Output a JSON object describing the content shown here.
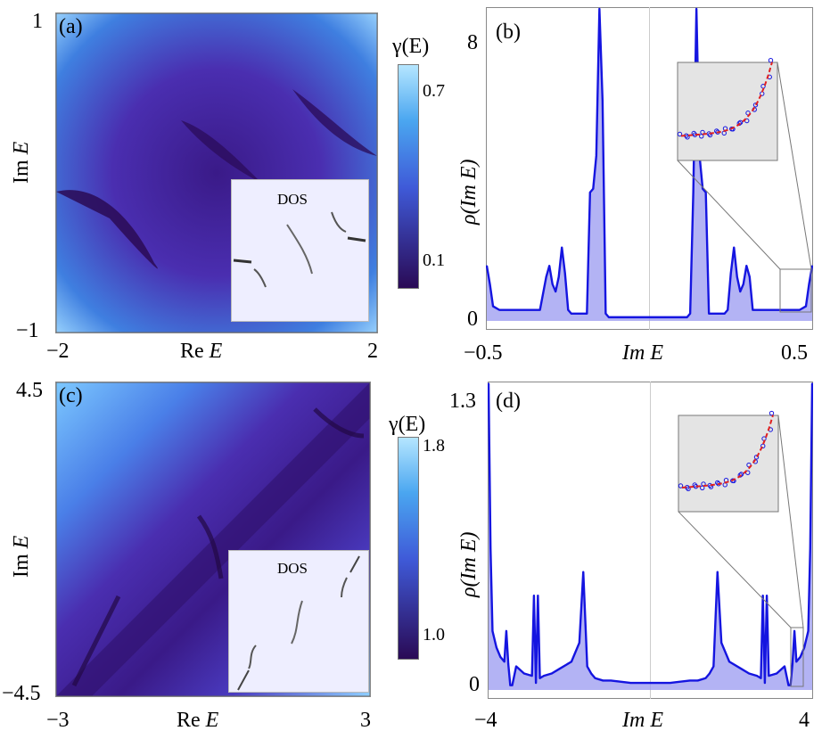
{
  "panels": {
    "a": {
      "tag": "(a)",
      "xlabel_re": "Re",
      "xlabel_var": "E",
      "ylabel_im": "Im",
      "ylabel_var": "E",
      "xticks": [
        "−2",
        "2"
      ],
      "yticks": [
        "1",
        "−1"
      ],
      "colorbar_label": "γ(E)",
      "colorbar_ticks": [
        "0.7",
        "0.1"
      ],
      "inset_title": "DOS"
    },
    "b": {
      "tag": "(b)",
      "xlabel": "Im E",
      "ylabel": "ρ(Im E)",
      "xticks": [
        "−0.5",
        "0.5"
      ],
      "yticks": [
        "8",
        "0"
      ]
    },
    "c": {
      "tag": "(c)",
      "xlabel_re": "Re",
      "xlabel_var": "E",
      "ylabel_im": "Im",
      "ylabel_var": "E",
      "xticks": [
        "−3",
        "3"
      ],
      "yticks": [
        "4.5",
        "−4.5"
      ],
      "colorbar_label": "γ(E)",
      "colorbar_ticks": [
        "1.8",
        "1.0"
      ],
      "inset_title": "DOS"
    },
    "d": {
      "tag": "(d)",
      "xlabel": "Im E",
      "ylabel": "ρ(Im E)",
      "xticks": [
        "−4",
        "4"
      ],
      "yticks": [
        "1.3",
        "0"
      ]
    }
  },
  "colors": {
    "line": "#1515e0",
    "fill": "#9a9af0",
    "fit": "#e02020",
    "cmap_low": "#2a0a55",
    "cmap_high": "#aee0ff"
  },
  "chart_data": [
    {
      "type": "heatmap",
      "panel": "a",
      "xlabel": "Re E",
      "ylabel": "Im E",
      "xlim": [
        -2,
        2
      ],
      "ylim": [
        -1,
        1
      ],
      "colorbar_label": "γ(E)",
      "colorbar_ticks": [
        0.7,
        0.1
      ]
    },
    {
      "type": "area",
      "panel": "b",
      "xlabel": "Im E",
      "ylabel": "ρ(Im E)",
      "xlim": [
        -0.52,
        0.52
      ],
      "ylim": [
        0,
        8.5
      ],
      "x": [
        -0.52,
        -0.51,
        -0.5,
        -0.48,
        -0.45,
        -0.4,
        -0.35,
        -0.33,
        -0.32,
        -0.31,
        -0.3,
        -0.29,
        -0.28,
        -0.27,
        -0.26,
        -0.25,
        -0.24,
        -0.22,
        -0.2,
        -0.19,
        -0.18,
        -0.17,
        -0.16,
        -0.15,
        -0.14,
        -0.13,
        -0.12,
        -0.1,
        -0.05,
        0.0,
        0.05,
        0.1,
        0.12,
        0.13,
        0.14,
        0.15,
        0.16,
        0.17,
        0.18,
        0.19,
        0.2,
        0.22,
        0.24,
        0.25,
        0.26,
        0.27,
        0.28,
        0.29,
        0.3,
        0.31,
        0.32,
        0.33,
        0.35,
        0.4,
        0.45,
        0.48,
        0.5,
        0.51,
        0.52
      ],
      "y": [
        1.5,
        1.0,
        0.4,
        0.3,
        0.3,
        0.3,
        0.3,
        1.2,
        1.5,
        1.0,
        0.8,
        1.2,
        2.0,
        1.3,
        0.3,
        0.2,
        0.2,
        0.2,
        0.2,
        3.5,
        3.6,
        4.5,
        8.5,
        6.0,
        0.2,
        0.1,
        0.1,
        0.1,
        0.1,
        0.1,
        0.1,
        0.1,
        0.1,
        0.2,
        3.5,
        8.5,
        4.5,
        3.6,
        3.5,
        0.2,
        0.2,
        0.2,
        0.2,
        0.3,
        1.3,
        2.0,
        1.2,
        0.8,
        1.0,
        1.5,
        1.2,
        0.3,
        0.3,
        0.3,
        0.3,
        0.3,
        0.4,
        1.0,
        1.5
      ]
    },
    {
      "type": "heatmap",
      "panel": "c",
      "xlabel": "Re E",
      "ylabel": "Im E",
      "xlim": [
        -3,
        3
      ],
      "ylim": [
        -4.5,
        4.5
      ],
      "colorbar_label": "γ(E)",
      "colorbar_ticks": [
        1.8,
        1.0
      ]
    },
    {
      "type": "area",
      "panel": "d",
      "xlabel": "Im E",
      "ylabel": "ρ(Im E)",
      "xlim": [
        -4.1,
        4.1
      ],
      "ylim": [
        0,
        1.3
      ],
      "x": [
        -4.1,
        -4.05,
        -4.0,
        -3.9,
        -3.8,
        -3.7,
        -3.65,
        -3.6,
        -3.55,
        -3.5,
        -3.4,
        -3.2,
        -3.0,
        -2.95,
        -2.9,
        -2.85,
        -2.8,
        -2.7,
        -2.5,
        -2.3,
        -2.0,
        -1.8,
        -1.7,
        -1.6,
        -1.5,
        -1.4,
        -1.2,
        -1.0,
        -0.5,
        0.0,
        0.5,
        1.0,
        1.2,
        1.4,
        1.5,
        1.6,
        1.7,
        1.8,
        2.0,
        2.3,
        2.5,
        2.7,
        2.8,
        2.85,
        2.9,
        2.95,
        3.0,
        3.2,
        3.4,
        3.5,
        3.55,
        3.6,
        3.65,
        3.7,
        3.8,
        3.9,
        4.0,
        4.05,
        4.1
      ],
      "y": [
        1.3,
        0.6,
        0.25,
        0.18,
        0.14,
        0.12,
        0.25,
        0.11,
        0.02,
        0.02,
        0.1,
        0.07,
        0.06,
        0.4,
        0.03,
        0.4,
        0.05,
        0.06,
        0.07,
        0.09,
        0.12,
        0.2,
        0.5,
        0.1,
        0.07,
        0.05,
        0.04,
        0.04,
        0.03,
        0.03,
        0.03,
        0.04,
        0.04,
        0.05,
        0.07,
        0.1,
        0.5,
        0.2,
        0.12,
        0.09,
        0.07,
        0.06,
        0.05,
        0.4,
        0.03,
        0.4,
        0.06,
        0.07,
        0.1,
        0.02,
        0.02,
        0.11,
        0.25,
        0.12,
        0.14,
        0.18,
        0.25,
        0.6,
        1.3
      ]
    }
  ]
}
